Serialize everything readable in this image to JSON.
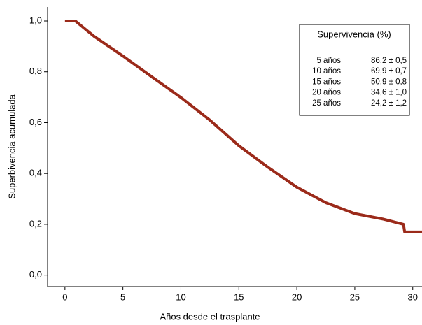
{
  "chart_data": {
    "type": "line",
    "x_label": "Años desde el trasplante",
    "y_label": "Superbivencia acumulada",
    "x": [
      0,
      0.9,
      2.5,
      5,
      7.5,
      10,
      12.5,
      15,
      17.5,
      20,
      22.5,
      25,
      27.5,
      29.2,
      29.3,
      30.8
    ],
    "series": [
      {
        "color": "#9b2a1a",
        "values": [
          1.0,
          1.0,
          0.94,
          0.862,
          0.78,
          0.699,
          0.61,
          0.509,
          0.425,
          0.346,
          0.285,
          0.242,
          0.22,
          0.2,
          0.17,
          0.17
        ]
      }
    ],
    "xlim": [
      -1.5,
      30.8
    ],
    "ylim": [
      -0.045,
      1.055
    ],
    "xticks": [
      0,
      5,
      10,
      15,
      20,
      25,
      30
    ],
    "yticks": [
      {
        "value": 0,
        "label": "0,0"
      },
      {
        "value": 0.2,
        "label": "0,2"
      },
      {
        "value": 0.4,
        "label": "0,4"
      },
      {
        "value": 0.6,
        "label": "0,6"
      },
      {
        "value": 0.8,
        "label": "0,8"
      },
      {
        "value": 1.0,
        "label": "1,0"
      }
    ],
    "annotation": {
      "title": "Supervivencia (%)",
      "rows": [
        [
          "5 años",
          "86,2 ± 0,5"
        ],
        [
          "10 años",
          "69,9 ± 0,7"
        ],
        [
          "15 años",
          "50,9 ± 0,8"
        ],
        [
          "20 años",
          "34,6 ± 1,0"
        ],
        [
          "25 años",
          "24,2 ± 1,2"
        ]
      ]
    }
  }
}
